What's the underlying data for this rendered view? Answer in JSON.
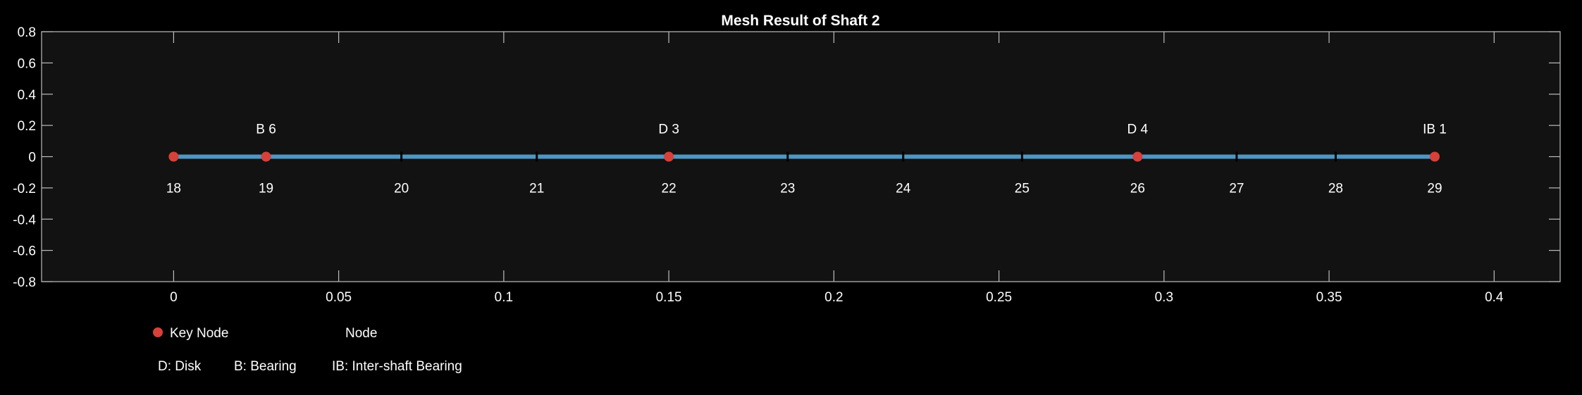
{
  "chart_data": {
    "type": "line",
    "title": "Mesh Result of Shaft 2",
    "xlabel": "",
    "ylabel": "",
    "xlim": [
      -0.04,
      0.42
    ],
    "ylim": [
      -0.8,
      0.8
    ],
    "x_ticks": [
      0,
      0.05,
      0.1,
      0.15,
      0.2,
      0.25,
      0.3,
      0.35,
      0.4
    ],
    "x_tick_labels": [
      "0",
      "0.05",
      "0.1",
      "0.15",
      "0.2",
      "0.25",
      "0.3",
      "0.35",
      "0.4"
    ],
    "y_ticks": [
      0.8,
      0.6,
      0.4,
      0.2,
      0,
      -0.2,
      -0.4,
      -0.6,
      -0.8
    ],
    "y_tick_labels": [
      "0.8",
      "0.6",
      "0.4",
      "0.2",
      "0",
      "-0.2",
      "-0.4",
      "-0.6",
      "-0.8"
    ],
    "grid": false,
    "shaft": {
      "x_start": 0,
      "x_end": 0.382,
      "y": 0,
      "color": "#4f97c2"
    },
    "nodes": [
      {
        "id": "18",
        "x": 0.0,
        "key": true,
        "label": "18"
      },
      {
        "id": "19",
        "x": 0.028,
        "key": true,
        "label": "19"
      },
      {
        "id": "20",
        "x": 0.069,
        "key": false,
        "label": "20"
      },
      {
        "id": "21",
        "x": 0.11,
        "key": false,
        "label": "21"
      },
      {
        "id": "22",
        "x": 0.15,
        "key": true,
        "label": "22"
      },
      {
        "id": "23",
        "x": 0.186,
        "key": false,
        "label": "23"
      },
      {
        "id": "24",
        "x": 0.221,
        "key": false,
        "label": "24"
      },
      {
        "id": "25",
        "x": 0.257,
        "key": false,
        "label": "25"
      },
      {
        "id": "26",
        "x": 0.292,
        "key": true,
        "label": "26"
      },
      {
        "id": "27",
        "x": 0.322,
        "key": false,
        "label": "27"
      },
      {
        "id": "28",
        "x": 0.352,
        "key": false,
        "label": "28"
      },
      {
        "id": "29",
        "x": 0.382,
        "key": true,
        "label": "29"
      }
    ],
    "annotations": [
      {
        "x": 0.028,
        "text": "B 6"
      },
      {
        "x": 0.15,
        "text": "D 3"
      },
      {
        "x": 0.292,
        "text": "D 4"
      },
      {
        "x": 0.382,
        "text": "IB 1"
      }
    ],
    "legend": {
      "placement": "bottom-left",
      "items": [
        {
          "label": "Key Node",
          "marker": "dot",
          "color": "#d6413a"
        },
        {
          "label": "Node",
          "marker": "tick",
          "color": "#000000"
        }
      ],
      "notes": [
        "D: Disk",
        "B: Bearing",
        "IB: Inter-shaft Bearing"
      ]
    },
    "colors": {
      "background": "#000000",
      "axes_background": "#121212",
      "axes_line": "#bdbdbd",
      "key_node": "#d6413a",
      "node_tick": "#000000",
      "text": "#ffffff"
    }
  }
}
